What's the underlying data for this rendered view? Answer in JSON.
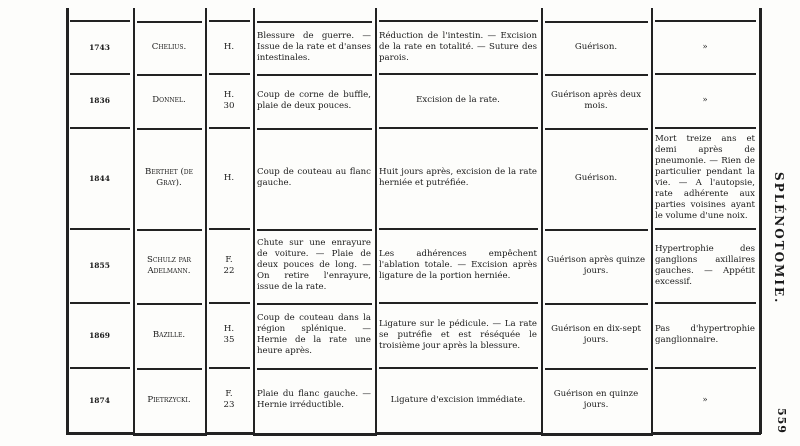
{
  "running_title": "SPLÉNOTOMIE.",
  "page_number": "559",
  "rows": [
    {
      "year": "1743",
      "author": "Chelius.",
      "sex_age": "H.",
      "cause": "Blessure de guerre. — Issue de la rate et d'anses intestinales.",
      "operation": "Réduction de l'intestin. — Excision de la rate en totalité. — Suture des parois.",
      "result": "Guérison.",
      "notes": "»"
    },
    {
      "year": "1836",
      "author": "Donnel.",
      "sex_age": "H. 30",
      "cause": "Coup de corne de buffle, plaie de deux pouces.",
      "operation": "Excision de la rate.",
      "result": "Guérison après deux mois.",
      "notes": "»"
    },
    {
      "year": "1844",
      "author": "Berthet (de Gray).",
      "sex_age": "H.",
      "cause": "Coup de couteau au flanc gauche.",
      "operation": "Huit jours après, excision de la rate herniée et putréfiée.",
      "result": "Guérison.",
      "notes": "Mort treize ans et demi après de pneumonie. — Rien de particulier pendant la vie. — A l'autopsie, rate adhérente aux parties voisines ayant le volume d'une noix."
    },
    {
      "year": "1855",
      "author": "Schulz par Adelmann.",
      "sex_age": "F. 22",
      "cause": "Chute sur une enrayure de voiture. — Plaie de deux pouces de long. — On retire l'enrayure, issue de la rate.",
      "operation": "Les adhérences empêchent l'ablation totale. — Excision après ligature de la portion herniée.",
      "result": "Guérison après quinze jours.",
      "notes": "Hypertrophie des ganglions axillaires gauches. — Appétit excessif."
    },
    {
      "year": "1869",
      "author": "Bazille.",
      "sex_age": "H. 35",
      "cause": "Coup de couteau dans la région splénique. — Hernie de la rate une heure après.",
      "operation": "Ligature sur le pédicule. — La rate se putréfie et est réséquée le troisième jour après la blessure.",
      "result": "Guérison en dix-sept jours.",
      "notes": "Pas d'hypertrophie ganglionnaire."
    },
    {
      "year": "1874",
      "author": "Pietrzycki.",
      "sex_age": "F. 23",
      "cause": "Plaie du flanc gauche. — Hernie irréductible.",
      "operation": "Ligature d'excision immédiate.",
      "result": "Guérison en quinze jours.",
      "notes": "»"
    }
  ]
}
